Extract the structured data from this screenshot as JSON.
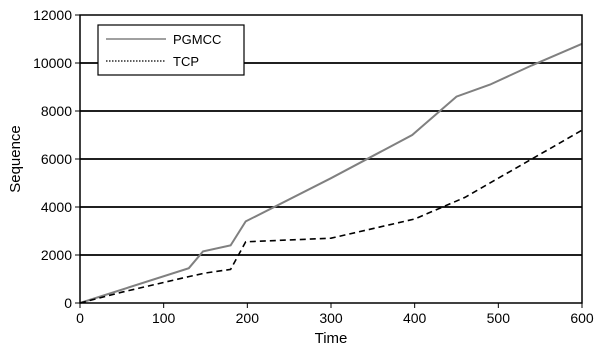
{
  "chart_data": {
    "type": "line",
    "title": "",
    "xlabel": "Time",
    "ylabel": "Sequence",
    "xlim": [
      0,
      600
    ],
    "ylim": [
      0,
      12000
    ],
    "xticks": [
      0,
      100,
      200,
      300,
      400,
      500,
      600
    ],
    "yticks": [
      0,
      2000,
      4000,
      6000,
      8000,
      10000,
      12000
    ],
    "grid": "horizontal",
    "legend": "top-left",
    "series": [
      {
        "name": "PGMCC",
        "color": "#808080",
        "style": "solid",
        "points": [
          [
            0,
            0
          ],
          [
            130,
            1450
          ],
          [
            147,
            2150
          ],
          [
            180,
            2400
          ],
          [
            198,
            3400
          ],
          [
            300,
            5200
          ],
          [
            397,
            7000
          ],
          [
            450,
            8600
          ],
          [
            490,
            9100
          ],
          [
            540,
            9900
          ],
          [
            600,
            10800
          ]
        ]
      },
      {
        "name": "TCP",
        "color": "#000000",
        "style": "dashed",
        "points": [
          [
            0,
            0
          ],
          [
            50,
            450
          ],
          [
            130,
            1100
          ],
          [
            150,
            1250
          ],
          [
            180,
            1400
          ],
          [
            198,
            2550
          ],
          [
            300,
            2700
          ],
          [
            400,
            3500
          ],
          [
            460,
            4400
          ],
          [
            500,
            5200
          ],
          [
            550,
            6200
          ],
          [
            600,
            7200
          ]
        ]
      }
    ]
  }
}
